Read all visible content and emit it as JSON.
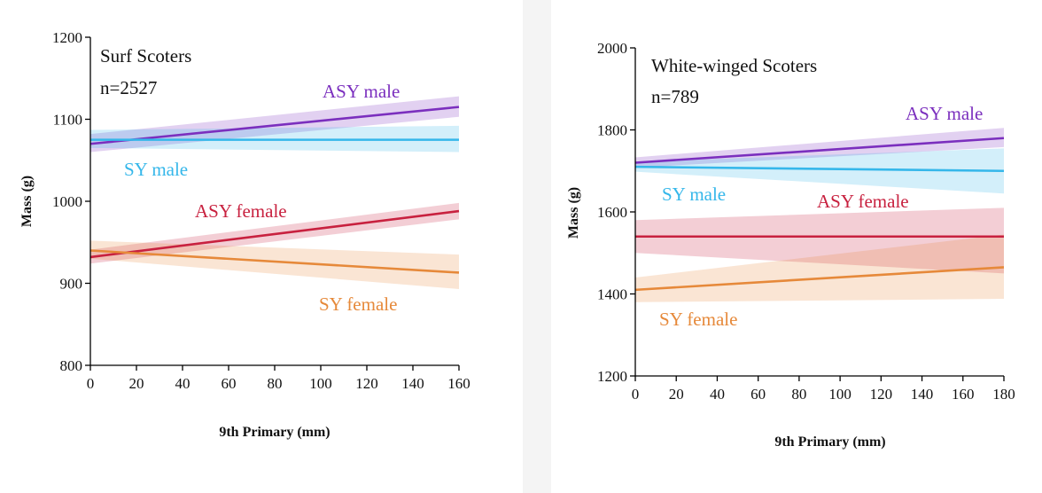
{
  "chart_data": [
    {
      "type": "line",
      "annotation": [
        "Surf Scoters",
        "n=2527"
      ],
      "xlabel": "9th Primary (mm)",
      "ylabel": "Mass (g)",
      "xlim": [
        0,
        160
      ],
      "ylim": [
        800,
        1200
      ],
      "xticks": [
        0,
        20,
        40,
        60,
        80,
        100,
        120,
        140,
        160
      ],
      "yticks": [
        800,
        900,
        1000,
        1100,
        1200
      ],
      "grid": false,
      "series": [
        {
          "name": "ASY male",
          "color": "#7b2fbe",
          "x": [
            0,
            160
          ],
          "y": [
            1070,
            1115
          ],
          "ci_lower": [
            1060,
            1103
          ],
          "ci_upper": [
            1082,
            1128
          ]
        },
        {
          "name": "SY male",
          "color": "#35b7ea",
          "x": [
            0,
            160
          ],
          "y": [
            1075,
            1075
          ],
          "ci_lower": [
            1065,
            1060
          ],
          "ci_upper": [
            1087,
            1092
          ]
        },
        {
          "name": "ASY female",
          "color": "#c8213f",
          "x": [
            0,
            160
          ],
          "y": [
            932,
            988
          ],
          "ci_lower": [
            924,
            978
          ],
          "ci_upper": [
            941,
            998
          ]
        },
        {
          "name": "SY female",
          "color": "#e6893a",
          "x": [
            0,
            160
          ],
          "y": [
            940,
            913
          ],
          "ci_lower": [
            930,
            893
          ],
          "ci_upper": [
            952,
            935
          ]
        }
      ]
    },
    {
      "type": "line",
      "annotation": [
        "White-winged Scoters",
        "n=789"
      ],
      "xlabel": "9th Primary (mm)",
      "ylabel": "Mass (g)",
      "xlim": [
        0,
        180
      ],
      "ylim": [
        1200,
        2000
      ],
      "xticks": [
        0,
        20,
        40,
        60,
        80,
        100,
        120,
        140,
        160,
        180
      ],
      "yticks": [
        1200,
        1400,
        1600,
        1800,
        2000
      ],
      "grid": false,
      "series": [
        {
          "name": "ASY male",
          "color": "#7b2fbe",
          "x": [
            0,
            180
          ],
          "y": [
            1720,
            1780
          ],
          "ci_lower": [
            1708,
            1758
          ],
          "ci_upper": [
            1733,
            1805
          ]
        },
        {
          "name": "SY male",
          "color": "#35b7ea",
          "x": [
            0,
            180
          ],
          "y": [
            1710,
            1700
          ],
          "ci_lower": [
            1698,
            1645
          ],
          "ci_upper": [
            1722,
            1755
          ]
        },
        {
          "name": "ASY female",
          "color": "#c8213f",
          "x": [
            0,
            180
          ],
          "y": [
            1540,
            1540
          ],
          "ci_lower": [
            1500,
            1450
          ],
          "ci_upper": [
            1580,
            1610
          ]
        },
        {
          "name": "SY female",
          "color": "#e6893a",
          "x": [
            0,
            180
          ],
          "y": [
            1410,
            1465
          ],
          "ci_lower": [
            1380,
            1388
          ],
          "ci_upper": [
            1440,
            1545
          ]
        }
      ]
    }
  ]
}
